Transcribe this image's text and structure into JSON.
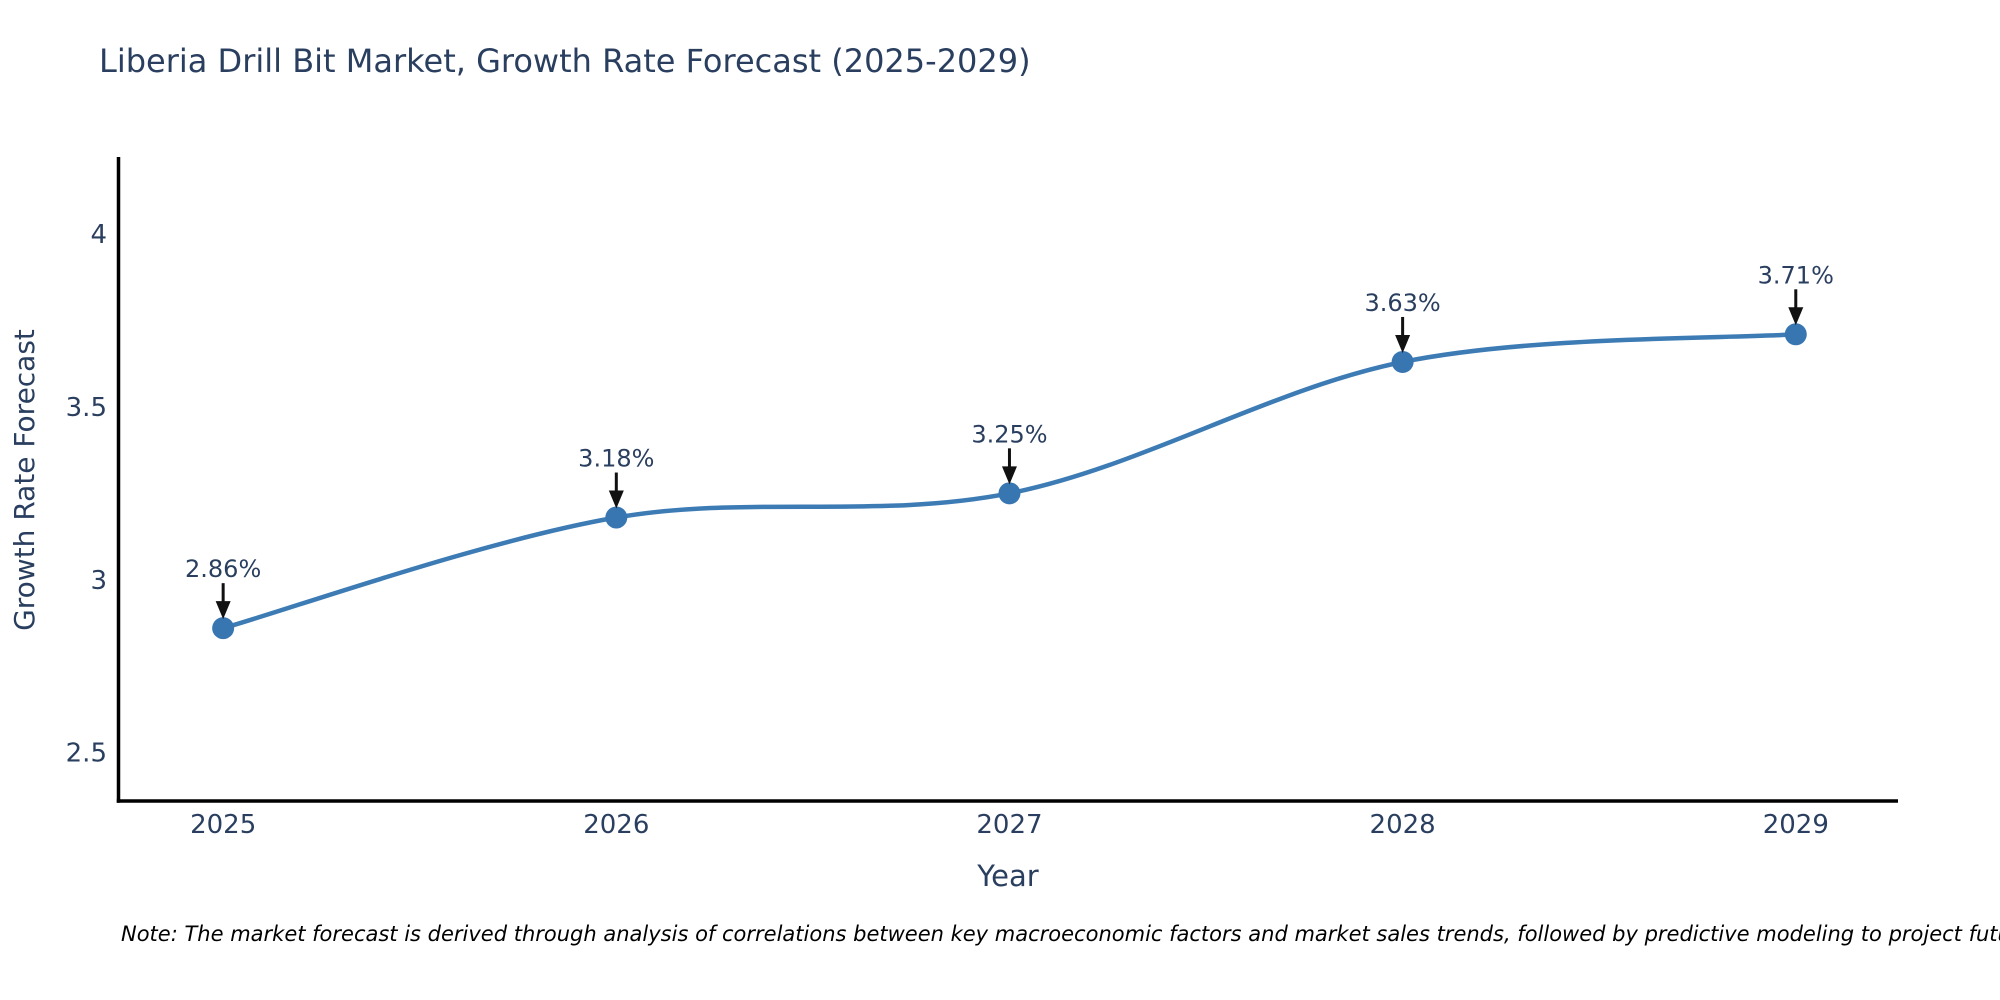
{
  "chart_data": {
    "type": "line",
    "title": "Liberia Drill Bit Market, Growth Rate Forecast (2025-2029)",
    "xlabel": "Year",
    "ylabel": "Growth Rate Forecast",
    "x": [
      2025,
      2026,
      2027,
      2028,
      2029
    ],
    "xtick_labels": [
      "2025",
      "2026",
      "2027",
      "2028",
      "2029"
    ],
    "series": [
      {
        "name": "Growth Rate Forecast",
        "values": [
          2.86,
          3.18,
          3.25,
          3.63,
          3.71
        ]
      }
    ],
    "point_labels": [
      "2.86%",
      "3.18%",
      "3.25%",
      "3.63%",
      "3.71%"
    ],
    "yticks": [
      2.5,
      3,
      3.5,
      4
    ],
    "ytick_labels": [
      "2.5",
      "3",
      "3.5",
      "4"
    ],
    "xlim": [
      2024.73,
      2029.26
    ],
    "ylim": [
      2.36,
      4.22
    ],
    "line_shape": "spline",
    "grid": false,
    "legend_position": "none",
    "note": "Note: The market forecast is derived through analysis of correlations between key macroeconomic factors and market sales trends, followed by predictive modeling to project future sales",
    "colors": {
      "line": "#3d7bb5",
      "marker": "#3876b2",
      "arrow": "#111111",
      "text": "#2a3f5f",
      "axis": "#000000",
      "note_text": "#000000",
      "background": "#ffffff"
    }
  }
}
